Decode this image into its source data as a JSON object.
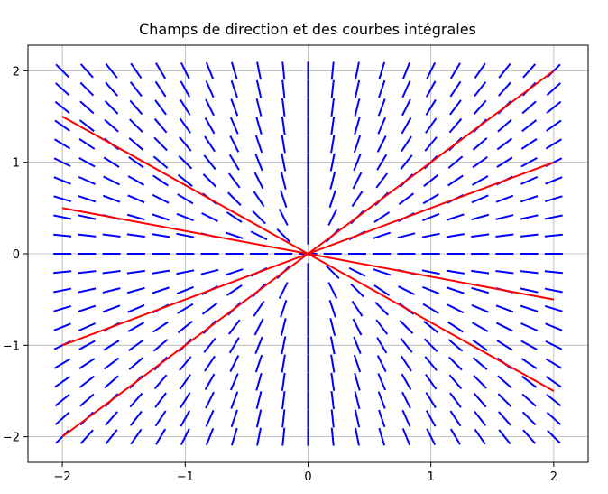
{
  "chart_data": {
    "type": "direction-field",
    "title": "Champs de direction et des courbes intégrales",
    "xlabel": "",
    "ylabel": "",
    "xlim": [
      -2.28,
      2.28
    ],
    "ylim": [
      -2.28,
      2.28
    ],
    "xticks": [
      -2,
      -1,
      0,
      1,
      2
    ],
    "yticks": [
      -2,
      -1,
      0,
      1,
      2
    ],
    "xtick_labels": [
      "−2",
      "−1",
      "0",
      "1",
      "2"
    ],
    "ytick_labels": [
      "−2",
      "−1",
      "0",
      "1",
      "2"
    ],
    "grid": true,
    "slope_field": {
      "equation": "y' = y/x",
      "color": "#0000ff",
      "x_samples": [
        -2.0,
        -1.8,
        -1.6,
        -1.4,
        -1.2,
        -1.0,
        -0.8,
        -0.6,
        -0.4,
        -0.2,
        0.0,
        0.2,
        0.4,
        0.6,
        0.8,
        1.0,
        1.2,
        1.4,
        1.6,
        1.8,
        2.0
      ],
      "y_samples": [
        -2.0,
        -1.8,
        -1.6,
        -1.4,
        -1.2,
        -1.0,
        -0.8,
        -0.6,
        -0.4,
        -0.2,
        0.0,
        0.2,
        0.4,
        0.6,
        0.8,
        1.0,
        1.2,
        1.4,
        1.6,
        1.8,
        2.0
      ]
    },
    "series": [
      {
        "color": "#ff0000",
        "x": [
          -2,
          2
        ],
        "y": [
          -2,
          2
        ]
      },
      {
        "color": "#ff0000",
        "x": [
          -2,
          2
        ],
        "y": [
          -1,
          1
        ]
      },
      {
        "color": "#ff0000",
        "x": [
          -2,
          2
        ],
        "y": [
          0.5,
          -0.5
        ]
      },
      {
        "color": "#ff0000",
        "x": [
          -2,
          2
        ],
        "y": [
          1.5,
          -1.5
        ]
      }
    ]
  }
}
